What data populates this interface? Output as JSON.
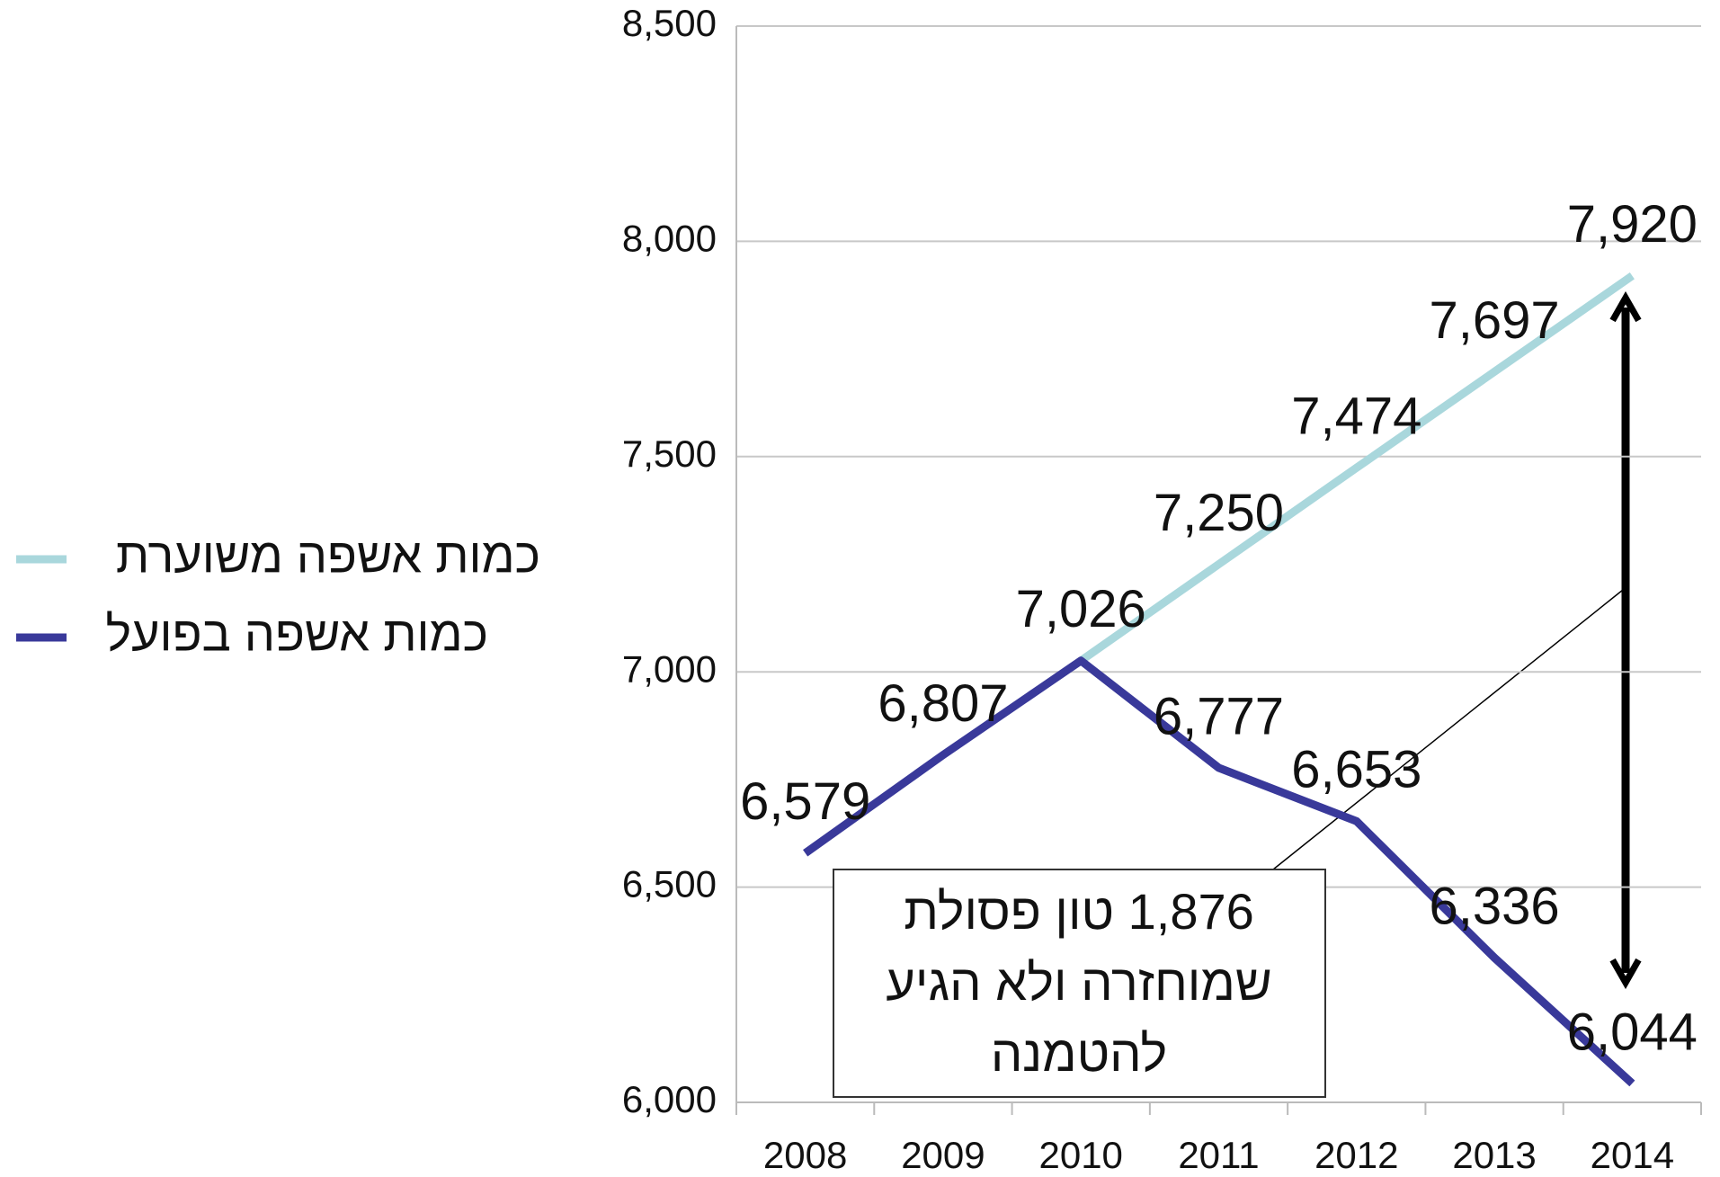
{
  "chart_data": {
    "type": "line",
    "categories": [
      "2008",
      "2009",
      "2010",
      "2011",
      "2012",
      "2013",
      "2014"
    ],
    "series": [
      {
        "name": "כמות אשפה משוערת",
        "color": "#a9d7dc",
        "values": [
          null,
          null,
          7026,
          7250,
          7474,
          7697,
          7920
        ],
        "value_labels": [
          null,
          null,
          null,
          "7,250",
          "7,474",
          "7,697",
          "7,920"
        ]
      },
      {
        "name": "כמות אשפה בפועל",
        "color": "#39399a",
        "values": [
          6579,
          6807,
          7026,
          6777,
          6653,
          6336,
          6044
        ],
        "value_labels": [
          "6,579",
          "6,807",
          "7,026",
          "6,777",
          "6,653",
          "6,336",
          "6,044"
        ]
      }
    ],
    "ylim": [
      6000,
      8500
    ],
    "yticks": [
      {
        "value": 6000,
        "label": "6,000"
      },
      {
        "value": 6500,
        "label": "6,500"
      },
      {
        "value": 7000,
        "label": "7,000"
      },
      {
        "value": 7500,
        "label": "7,500"
      },
      {
        "value": 8000,
        "label": "8,000"
      },
      {
        "value": 8500,
        "label": "8,500"
      }
    ],
    "grid": true,
    "legend": "left",
    "annotation": [
      "1,876 טון פסולת",
      "שמוחזרה ולא הגיע",
      "להטמנה"
    ]
  }
}
